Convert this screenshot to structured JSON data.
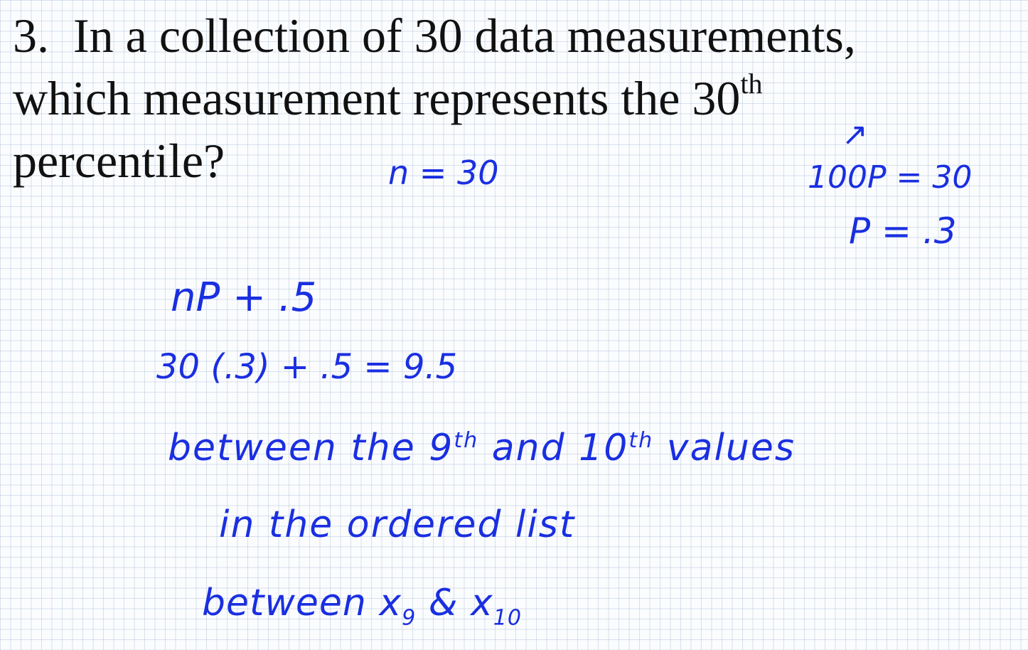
{
  "question": {
    "number": "3.",
    "line1": "In a collection of 30 data measurements,",
    "line2_main": "which measurement represents the 30",
    "line2_sup": "th",
    "line3": "percentile?"
  },
  "handwriting": {
    "n_eq": "n = 30",
    "arrow": "↗",
    "hundred_p": "100P = 30",
    "p_eq": "P = .3",
    "formula": "nP + .5",
    "calc": "30 (.3) + .5  =  9.5",
    "between1_a": "between  the  9",
    "between1_sup1": "th",
    "between1_b": "  and  10",
    "between1_sup2": "th",
    "between1_c": "  values",
    "in_list": "in  the  ordered  list",
    "between2_a": "between  x",
    "between2_sub1": "9",
    "between2_b": "  &  x",
    "between2_sub2": "10"
  }
}
